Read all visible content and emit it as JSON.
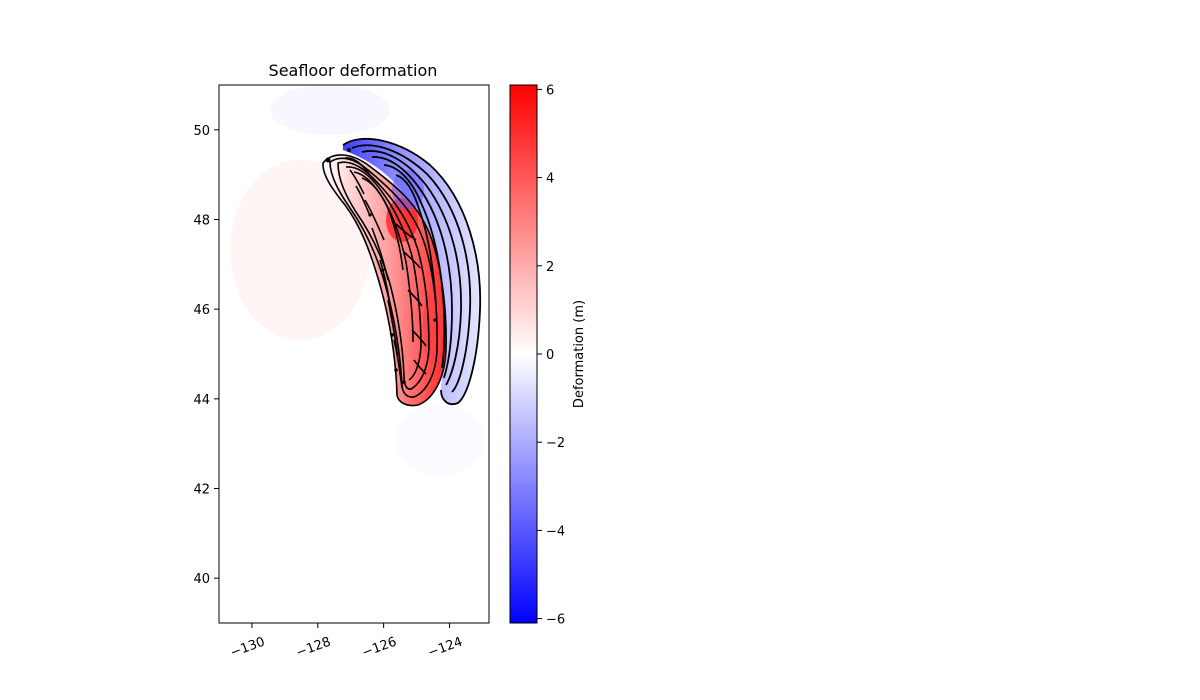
{
  "chart_data": {
    "type": "heatmap",
    "title": "Seafloor deformation",
    "xlim": [
      -131,
      -122.8
    ],
    "ylim": [
      39,
      51
    ],
    "x_ticks": [
      -130,
      -128,
      -126,
      -124
    ],
    "x_tick_labels": [
      "−130",
      "−128",
      "−126",
      "−124"
    ],
    "y_ticks": [
      40,
      42,
      44,
      46,
      48,
      50
    ],
    "y_tick_labels": [
      "40",
      "42",
      "44",
      "46",
      "48",
      "50"
    ],
    "colormap": "bwr",
    "colormap_colors": {
      "min": "#0000ff",
      "mid": "#ffffff",
      "max": "#ff0000"
    },
    "contour_color": "#000000",
    "colorbar": {
      "label": "Deformation (m)",
      "range": [
        -6.1,
        6.1
      ],
      "ticks": [
        -6,
        -4,
        -2,
        0,
        2,
        4,
        6
      ],
      "tick_labels": [
        "−6",
        "−4",
        "−2",
        "0",
        "2",
        "4",
        "6"
      ]
    },
    "uplift_zone": {
      "max_m": 6.1,
      "trace": [
        [
          -127.3,
          49.3
        ],
        [
          -126.6,
          48.7
        ],
        [
          -126.0,
          48.0
        ],
        [
          -125.6,
          47.2
        ],
        [
          -125.2,
          46.3
        ],
        [
          -124.9,
          45.4
        ],
        [
          -124.7,
          44.7
        ],
        [
          -124.7,
          44.1
        ]
      ]
    },
    "subsidence_zone": {
      "min_m": -6.1,
      "trace": [
        [
          -126.2,
          49.6
        ],
        [
          -125.3,
          48.9
        ],
        [
          -124.6,
          48.1
        ],
        [
          -124.1,
          47.2
        ],
        [
          -123.8,
          46.3
        ],
        [
          -123.7,
          45.3
        ],
        [
          -123.7,
          44.2
        ]
      ]
    }
  }
}
